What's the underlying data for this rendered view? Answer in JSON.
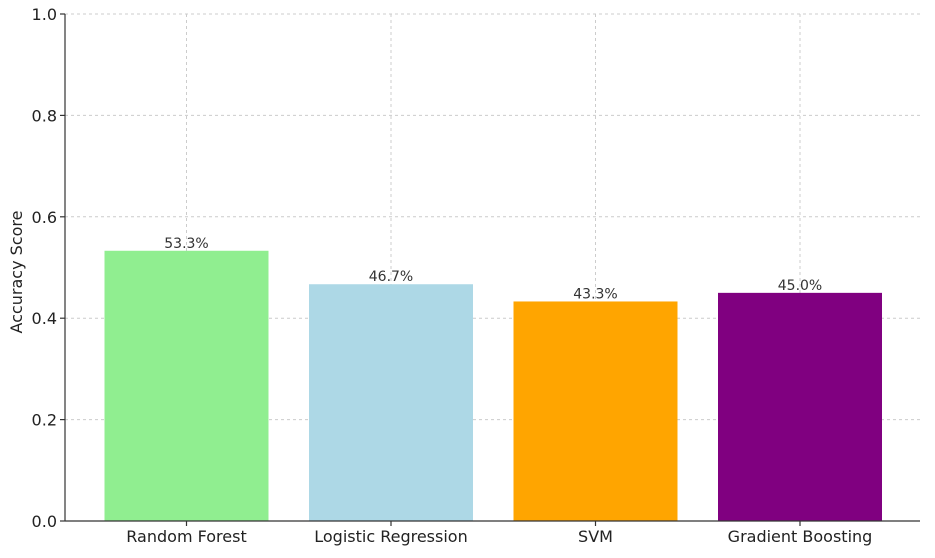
{
  "chart_data": {
    "type": "bar",
    "categories": [
      "Random Forest",
      "Logistic Regression",
      "SVM",
      "Gradient Boosting"
    ],
    "values": [
      0.533,
      0.467,
      0.433,
      0.45
    ],
    "data_labels": [
      "53.3%",
      "46.7%",
      "43.3%",
      "45.0%"
    ],
    "colors": [
      "#90ee90",
      "#add8e6",
      "#ffa500",
      "#800080"
    ],
    "title": "",
    "xlabel": "",
    "ylabel": "Accuracy Score",
    "ylim": [
      0,
      1.0
    ],
    "yticks": [
      0,
      0.2,
      0.4,
      0.6,
      0.8,
      1.0
    ],
    "ytick_labels": [
      "0.0",
      "0.2",
      "0.4",
      "0.6",
      "0.8",
      "1.0"
    ],
    "grid": true,
    "legend": "none"
  }
}
